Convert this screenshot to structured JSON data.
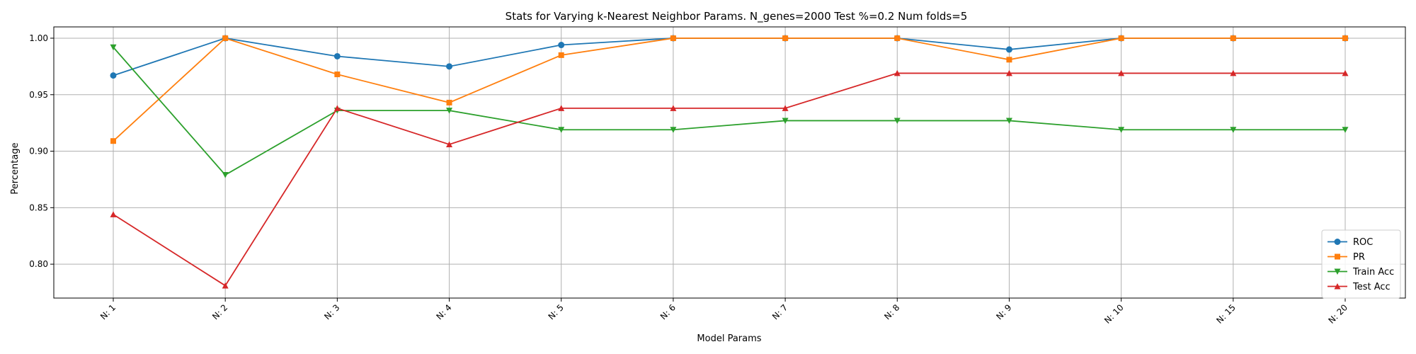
{
  "chart_data": {
    "type": "line",
    "title": "Stats for Varying k-Nearest Neighbor Params. N_genes=2000 Test %=0.2 Num folds=5",
    "xlabel": "Model Params",
    "ylabel": "Percentage",
    "categories": [
      "N: 1",
      "N: 2",
      "N: 3",
      "N: 4",
      "N: 5",
      "N: 6",
      "N: 7",
      "N: 8",
      "N: 9",
      "N: 10",
      "N: 15",
      "N: 20"
    ],
    "ylim": [
      0.77,
      1.01
    ],
    "yticks": [
      "0.80",
      "0.85",
      "0.90",
      "0.95",
      "1.00"
    ],
    "grid": true,
    "legend_position": "lower-right",
    "series": [
      {
        "name": "ROC",
        "color": "#1f77b4",
        "marker": "circle",
        "values": [
          0.967,
          1.0,
          0.984,
          0.975,
          0.994,
          1.0,
          1.0,
          1.0,
          0.99,
          1.0,
          1.0,
          1.0
        ]
      },
      {
        "name": "PR",
        "color": "#ff7f0e",
        "marker": "square",
        "values": [
          0.909,
          1.0,
          0.968,
          0.943,
          0.985,
          1.0,
          1.0,
          1.0,
          0.981,
          1.0,
          1.0,
          1.0
        ]
      },
      {
        "name": "Train Acc",
        "color": "#2ca02c",
        "marker": "triangle-down",
        "values": [
          0.992,
          0.879,
          0.936,
          0.936,
          0.919,
          0.919,
          0.927,
          0.927,
          0.927,
          0.919,
          0.919,
          0.919
        ]
      },
      {
        "name": "Test Acc",
        "color": "#d62728",
        "marker": "triangle-up",
        "values": [
          0.844,
          0.781,
          0.938,
          0.906,
          0.938,
          0.938,
          0.938,
          0.969,
          0.969,
          0.969,
          0.969,
          0.969
        ]
      }
    ]
  }
}
